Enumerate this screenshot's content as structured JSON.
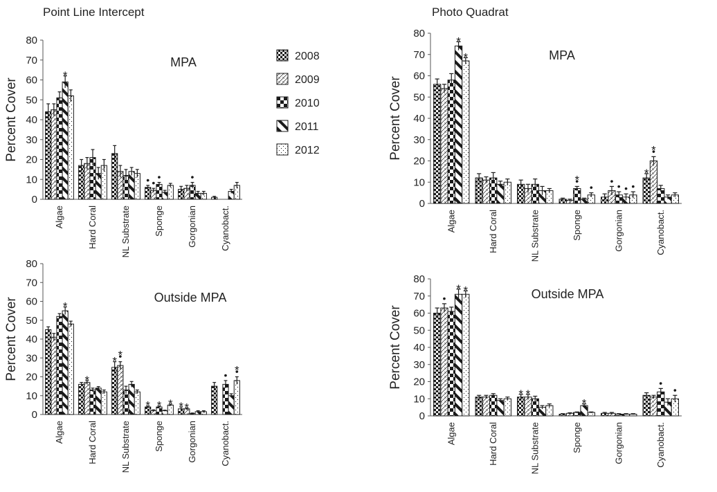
{
  "titles": {
    "left": "Point Line Intercept",
    "right": "Photo Quadrat"
  },
  "legend": {
    "years": [
      "2008",
      "2009",
      "2010",
      "2011",
      "2012"
    ]
  },
  "colors": {
    "ink": "#1a1a1a",
    "axis": "#555555",
    "background": "#ffffff"
  },
  "chart_data": [
    {
      "type": "bar",
      "panel": "Point Line Intercept",
      "title": "MPA",
      "xlabel": "",
      "ylabel": "Percent Cover",
      "ylim": [
        0,
        80
      ],
      "yticks": [
        0,
        10,
        20,
        30,
        40,
        50,
        60,
        70,
        80
      ],
      "grid": false,
      "legend_position": "top-right",
      "categories": [
        "Algae",
        "Hard Coral",
        "NL Substrate",
        "Sponge",
        "Gorgonian",
        "Cyanobact."
      ],
      "series": [
        {
          "name": "2008",
          "values": [
            44,
            17,
            23,
            6,
            5,
            1
          ]
        },
        {
          "name": "2009",
          "values": [
            45,
            18,
            14,
            4.5,
            5.5,
            null
          ]
        },
        {
          "name": "2010",
          "values": [
            51,
            21,
            12,
            7.5,
            7,
            null
          ]
        },
        {
          "name": "2011",
          "values": [
            59,
            13,
            14,
            3.5,
            3,
            4
          ]
        },
        {
          "name": "2012",
          "values": [
            52,
            17,
            13,
            7,
            3,
            7
          ]
        }
      ],
      "errors": [
        [
          4,
          3,
          4,
          1,
          1.5,
          0.5
        ],
        [
          3,
          3,
          3,
          1,
          1.5,
          0
        ],
        [
          3,
          4,
          3,
          1,
          1.5,
          0
        ],
        [
          3,
          3,
          2,
          1,
          1,
          1
        ],
        [
          3,
          3,
          2,
          1,
          1,
          1.5
        ]
      ],
      "annotations": [
        {
          "category": "Algae",
          "series": "2011",
          "marks": "*"
        },
        {
          "category": "Sponge",
          "series": "2008",
          "marks": "•"
        },
        {
          "category": "Sponge",
          "series": "2009",
          "marks": "•"
        },
        {
          "category": "Sponge",
          "series": "2010",
          "marks": "•"
        },
        {
          "category": "Gorgonian",
          "series": "2010",
          "marks": "•"
        }
      ]
    },
    {
      "type": "bar",
      "panel": "Photo Quadrat",
      "title": "MPA",
      "xlabel": "",
      "ylabel": "Percent Cover",
      "ylim": [
        0,
        80
      ],
      "yticks": [
        0,
        10,
        20,
        30,
        40,
        50,
        60,
        70,
        80
      ],
      "grid": false,
      "categories": [
        "Algae",
        "Hard Coral",
        "NL Substrate",
        "Sponge",
        "Gorgonian",
        "Cyanobact."
      ],
      "series": [
        {
          "name": "2008",
          "values": [
            56,
            12,
            9,
            2,
            3,
            12
          ]
        },
        {
          "name": "2009",
          "values": [
            54,
            11,
            7,
            1.5,
            6,
            20
          ]
        },
        {
          "name": "2010",
          "values": [
            58,
            12,
            9,
            7,
            4,
            7
          ]
        },
        {
          "name": "2011",
          "values": [
            74,
            9,
            6,
            2,
            3,
            3
          ]
        },
        {
          "name": "2012",
          "values": [
            67,
            10,
            6,
            4,
            4,
            4
          ]
        }
      ],
      "errors": [
        [
          2.5,
          2,
          2,
          0.5,
          1.5,
          2
        ],
        [
          2,
          1.5,
          2,
          0.5,
          2,
          2
        ],
        [
          3,
          2.5,
          2.5,
          1,
          1.5,
          1.5
        ],
        [
          2,
          1.5,
          2,
          0.5,
          1.5,
          1
        ],
        [
          1.5,
          1.5,
          1,
          1,
          1.5,
          1
        ]
      ],
      "annotations": [
        {
          "category": "Algae",
          "series": "2011",
          "marks": "*"
        },
        {
          "category": "Algae",
          "series": "2012",
          "marks": "*"
        },
        {
          "category": "Sponge",
          "series": "2010",
          "marks": "*•"
        },
        {
          "category": "Sponge",
          "series": "2012",
          "marks": "•"
        },
        {
          "category": "Gorgonian",
          "series": "2009",
          "marks": "•"
        },
        {
          "category": "Gorgonian",
          "series": "2010",
          "marks": "•"
        },
        {
          "category": "Gorgonian",
          "series": "2011",
          "marks": "•"
        },
        {
          "category": "Gorgonian",
          "series": "2012",
          "marks": "•"
        },
        {
          "category": "Cyanobact.",
          "series": "2008",
          "marks": "*"
        },
        {
          "category": "Cyanobact.",
          "series": "2009",
          "marks": "*•"
        }
      ]
    },
    {
      "type": "bar",
      "panel": "Point Line Intercept",
      "title": "Outside MPA",
      "xlabel": "",
      "ylabel": "Percent Cover",
      "ylim": [
        0,
        80
      ],
      "yticks": [
        0,
        10,
        20,
        30,
        40,
        50,
        60,
        70,
        80
      ],
      "grid": false,
      "categories": [
        "Algae",
        "Hard Coral",
        "NL Substrate",
        "Sponge",
        "Gorgonian",
        "Cyanobact."
      ],
      "series": [
        {
          "name": "2008",
          "values": [
            45,
            16,
            25,
            4,
            3,
            15
          ]
        },
        {
          "name": "2009",
          "values": [
            41,
            17,
            26,
            2,
            3,
            null
          ]
        },
        {
          "name": "2010",
          "values": [
            52,
            13,
            13,
            4,
            0.5,
            16
          ]
        },
        {
          "name": "2011",
          "values": [
            55,
            14,
            16,
            2,
            1.5,
            10
          ]
        },
        {
          "name": "2012",
          "values": [
            48,
            12,
            12,
            5,
            1.5,
            18
          ]
        }
      ],
      "errors": [
        [
          1.5,
          1,
          3,
          0.5,
          1,
          2
        ],
        [
          2,
          1,
          2,
          0.5,
          0.5,
          0
        ],
        [
          1.5,
          1,
          2,
          0.5,
          0.3,
          2
        ],
        [
          2,
          0.8,
          1.5,
          0.3,
          0.5,
          1
        ],
        [
          1.5,
          1,
          1,
          0.5,
          0.5,
          2
        ]
      ],
      "annotations": [
        {
          "category": "Algae",
          "series": "2011",
          "marks": "*"
        },
        {
          "category": "Hard Coral",
          "series": "2009",
          "marks": "*"
        },
        {
          "category": "NL Substrate",
          "series": "2008",
          "marks": "*"
        },
        {
          "category": "NL Substrate",
          "series": "2009",
          "marks": "*•"
        },
        {
          "category": "Sponge",
          "series": "2008",
          "marks": "*"
        },
        {
          "category": "Sponge",
          "series": "2010",
          "marks": "*"
        },
        {
          "category": "Sponge",
          "series": "2012",
          "marks": "*"
        },
        {
          "category": "Gorgonian",
          "series": "2008",
          "marks": "*"
        },
        {
          "category": "Gorgonian",
          "series": "2009",
          "marks": "*"
        },
        {
          "category": "Cyanobact.",
          "series": "2010",
          "marks": "•"
        },
        {
          "category": "Cyanobact.",
          "series": "2012",
          "marks": "*•"
        }
      ]
    },
    {
      "type": "bar",
      "panel": "Photo Quadrat",
      "title": "Outside MPA",
      "xlabel": "",
      "ylabel": "Percent Cover",
      "ylim": [
        0,
        80
      ],
      "yticks": [
        0,
        10,
        20,
        30,
        40,
        50,
        60,
        70,
        80
      ],
      "grid": false,
      "categories": [
        "Algae",
        "Hard Coral",
        "NL Substrate",
        "Sponge",
        "Gorgonian",
        "Cyanobact."
      ],
      "series": [
        {
          "name": "2008",
          "values": [
            60,
            11,
            11,
            1,
            1.5,
            12
          ]
        },
        {
          "name": "2009",
          "values": [
            63,
            11,
            11,
            1.5,
            1.5,
            11
          ]
        },
        {
          "name": "2010",
          "values": [
            61,
            12,
            10,
            2,
            1,
            14
          ]
        },
        {
          "name": "2011",
          "values": [
            71,
            9,
            5,
            6,
            1,
            8
          ]
        },
        {
          "name": "2012",
          "values": [
            71,
            10,
            6,
            2,
            1,
            10
          ]
        }
      ],
      "errors": [
        [
          3,
          1,
          1.5,
          0.3,
          0.5,
          1.5
        ],
        [
          2.5,
          1,
          1.5,
          0.3,
          0.5,
          1
        ],
        [
          2.5,
          1,
          1.5,
          0.3,
          0.3,
          2
        ],
        [
          3,
          1,
          1,
          1,
          0.3,
          2
        ],
        [
          2,
          1,
          1,
          0.3,
          0.3,
          2
        ]
      ],
      "annotations": [
        {
          "category": "Algae",
          "series": "2009",
          "marks": "•"
        },
        {
          "category": "Algae",
          "series": "2011",
          "marks": "*"
        },
        {
          "category": "Algae",
          "series": "2012",
          "marks": "*"
        },
        {
          "category": "NL Substrate",
          "series": "2008",
          "marks": "*"
        },
        {
          "category": "NL Substrate",
          "series": "2009",
          "marks": "*"
        },
        {
          "category": "Sponge",
          "series": "2011",
          "marks": "*"
        },
        {
          "category": "Cyanobact.",
          "series": "2010",
          "marks": "•"
        },
        {
          "category": "Cyanobact.",
          "series": "2012",
          "marks": "•"
        }
      ]
    }
  ]
}
